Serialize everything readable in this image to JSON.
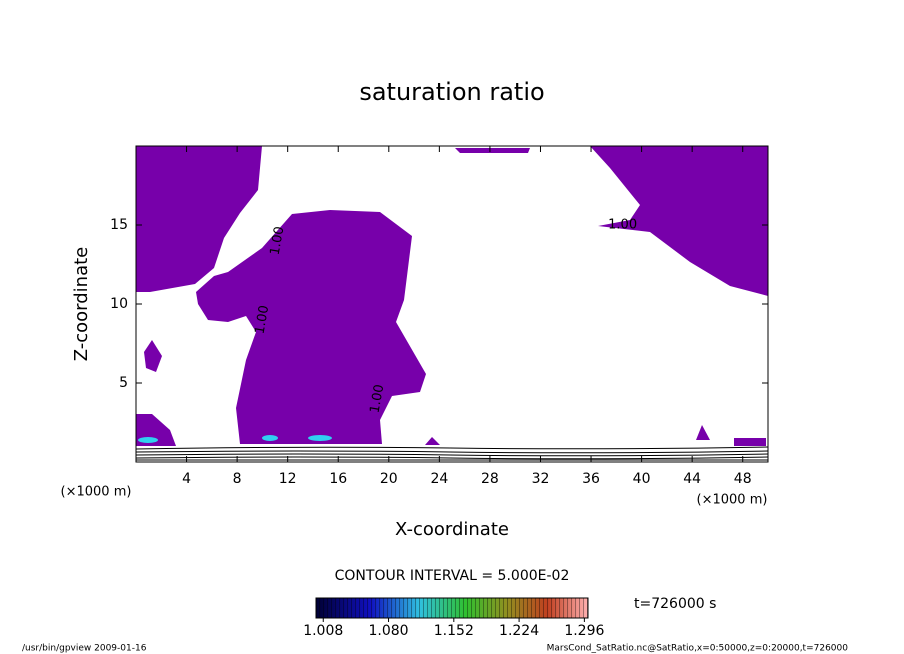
{
  "chart_data": {
    "type": "contour",
    "title": "saturation ratio",
    "xlabel": "X-coordinate",
    "ylabel": "Z-coordinate",
    "x_unit_label": "(×1000 m)",
    "y_unit_label": "(×1000 m)",
    "xlim": [
      0,
      50
    ],
    "ylim": [
      0,
      20
    ],
    "xticks": [
      4,
      8,
      12,
      16,
      20,
      24,
      28,
      32,
      36,
      40,
      44,
      48
    ],
    "yticks": [
      5,
      10,
      15
    ],
    "fill_color": "#7700aa",
    "contour_labels": [
      {
        "text": "1.00",
        "x": 38.5,
        "y": 15
      },
      {
        "text": "1.00",
        "x": 11.2,
        "y": 14
      },
      {
        "text": "1.00",
        "x": 10,
        "y": 9
      },
      {
        "text": "1.00",
        "x": 19.1,
        "y": 4
      }
    ],
    "contour_interval": "CONTOUR INTERVAL = 5.000E-02",
    "colorbar": {
      "lim": [
        1.0,
        1.3
      ],
      "ticks": [
        {
          "value": 1.008,
          "label": "1.008"
        },
        {
          "value": 1.08,
          "label": "1.080"
        },
        {
          "value": 1.152,
          "label": "1.152"
        },
        {
          "value": 1.224,
          "label": "1.224"
        },
        {
          "value": 1.296,
          "label": "1.296"
        }
      ]
    },
    "time_label": "t=726000 s",
    "footer_left": "/usr/bin/gpview  2009-01-16",
    "footer_right": "MarsCond_SatRatio.nc@SatRatio,x=0:50000,z=0:20000,t=726000"
  }
}
